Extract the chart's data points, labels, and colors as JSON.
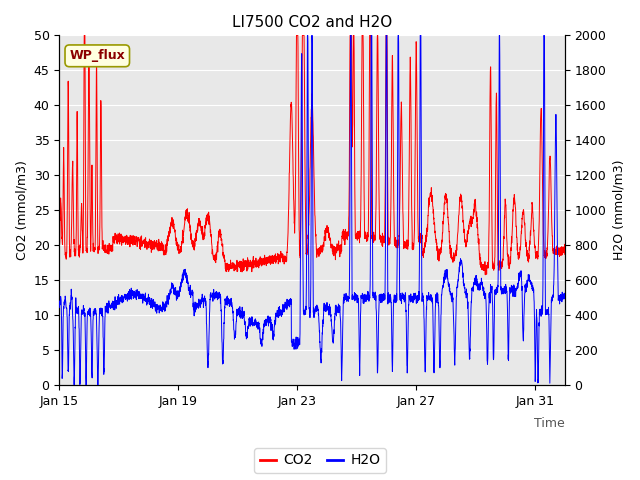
{
  "title": "LI7500 CO2 and H2O",
  "xlabel": "Time",
  "ylabel_left": "CO2 (mmol/m3)",
  "ylabel_right": "H2O (mmol/m3)",
  "ylim_left": [
    0,
    50
  ],
  "ylim_right": [
    0,
    2000
  ],
  "yticks_left": [
    0,
    5,
    10,
    15,
    20,
    25,
    30,
    35,
    40,
    45,
    50
  ],
  "yticks_right": [
    0,
    200,
    400,
    600,
    800,
    1000,
    1200,
    1400,
    1600,
    1800,
    2000
  ],
  "xtick_labels": [
    "Jan 15",
    "Jan 19",
    "Jan 23",
    "Jan 27",
    "Jan 31"
  ],
  "xtick_positions": [
    0,
    4,
    8,
    12,
    16
  ],
  "total_days": 17,
  "legend_labels": [
    "CO2",
    "H2O"
  ],
  "legend_colors": [
    "red",
    "blue"
  ],
  "annotation_text": "WP_flux",
  "plot_bg_color": "#e8e8e8",
  "grid_color": "white",
  "title_fontsize": 11,
  "axis_label_fontsize": 9,
  "tick_fontsize": 9,
  "legend_fontsize": 10
}
